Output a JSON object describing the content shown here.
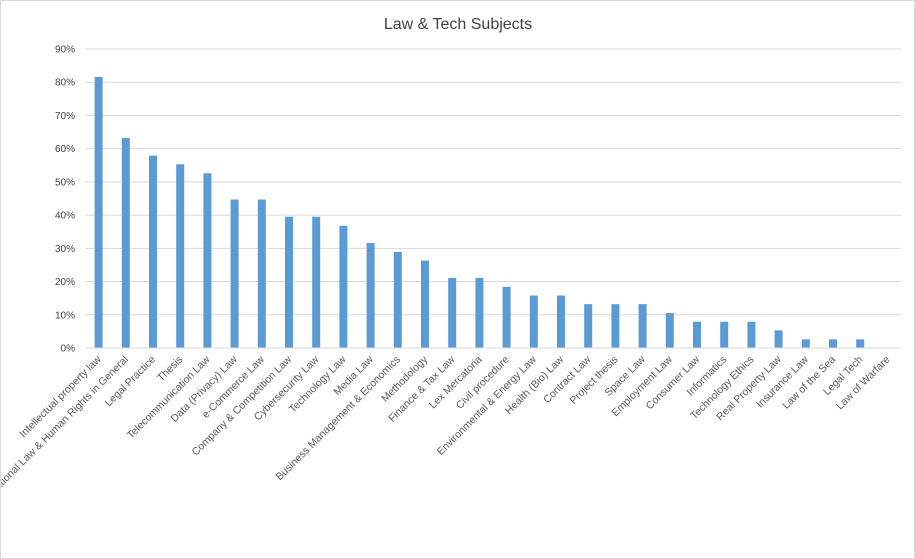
{
  "chart_data": {
    "type": "bar",
    "title": "Law & Tech Subjects",
    "xlabel": "",
    "ylabel": "",
    "ylim": [
      0,
      0.9
    ],
    "yticks": [
      0,
      0.1,
      0.2,
      0.3,
      0.4,
      0.5,
      0.6,
      0.7,
      0.8,
      0.9
    ],
    "ytick_labels": [
      "0%",
      "10%",
      "20%",
      "30%",
      "40%",
      "50%",
      "60%",
      "70%",
      "80%",
      "90%"
    ],
    "grid": true,
    "legend": "none",
    "bar_color": "#5b9bd5",
    "categories": [
      "Intellectual property law",
      "International Law & Human Rights in General",
      "Legal Practice",
      "Thesis",
      "Telecommunication Law",
      "Data (Privacy) Law",
      "e-Commerce Law",
      "Company & Competition Law",
      "Cybersecurity Law",
      "Technology Law",
      "Media Law",
      "Business Management & Economics",
      "Methodology",
      "Finance & Tax Law",
      "Lex Mercatoria",
      "Civil procedure",
      "Environmental & Energy Law",
      "Health (Bio) Law",
      "Contract Law",
      "Project thesis",
      "Space Law",
      "Employment Law",
      "Consumer Law",
      "Informatics",
      "Technology Ethics",
      "Real Property Law",
      "Insurance Law",
      "Law of the Sea",
      "Legal Tech",
      "Law of Warfare"
    ],
    "values": [
      0.816,
      0.632,
      0.579,
      0.553,
      0.526,
      0.447,
      0.447,
      0.395,
      0.395,
      0.368,
      0.316,
      0.289,
      0.263,
      0.211,
      0.211,
      0.184,
      0.158,
      0.158,
      0.132,
      0.132,
      0.132,
      0.105,
      0.079,
      0.079,
      0.079,
      0.053,
      0.026,
      0.026,
      0.026,
      0
    ]
  }
}
